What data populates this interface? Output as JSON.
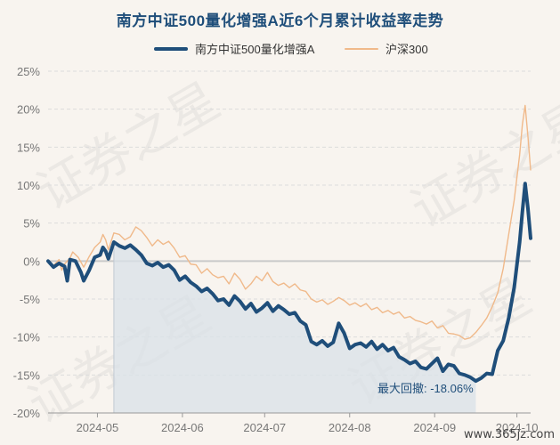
{
  "chart_data": {
    "type": "line",
    "title": "南方中证500量化增强A近6个月累计收益率走势",
    "y_ticks": [
      "25%",
      "20%",
      "15%",
      "10%",
      "5%",
      "0%",
      "-5%",
      "-10%",
      "-15%",
      "-20%"
    ],
    "ylim": [
      -20,
      25
    ],
    "x_ticks": [
      {
        "label": "2024-05",
        "x": 18
      },
      {
        "label": "2024-06",
        "x": 49
      },
      {
        "label": "2024-07",
        "x": 79
      },
      {
        "label": "2024-08",
        "x": 110
      },
      {
        "label": "2024-09",
        "x": 141
      },
      {
        "label": "2024-10",
        "x": 171
      }
    ],
    "xlim": [
      0,
      176
    ],
    "grid": true,
    "legend_position": "top",
    "series": [
      {
        "name": "南方中证500量化增强A",
        "color": "#1f4e7a",
        "points": [
          [
            0,
            0
          ],
          [
            2,
            -0.8
          ],
          [
            4,
            -0.3
          ],
          [
            6,
            -0.7
          ],
          [
            7,
            -2.6
          ],
          [
            8,
            0.2
          ],
          [
            10,
            0.0
          ],
          [
            12,
            -1.5
          ],
          [
            13,
            -2.6
          ],
          [
            15,
            -1.2
          ],
          [
            17,
            0.5
          ],
          [
            19,
            0.8
          ],
          [
            20,
            1.8
          ],
          [
            21,
            1.3
          ],
          [
            22,
            0.3
          ],
          [
            24,
            2.5
          ],
          [
            26,
            2.0
          ],
          [
            28,
            1.7
          ],
          [
            30,
            2.1
          ],
          [
            32,
            1.5
          ],
          [
            34,
            0.8
          ],
          [
            36,
            -0.3
          ],
          [
            38,
            -0.6
          ],
          [
            40,
            -0.2
          ],
          [
            42,
            -0.8
          ],
          [
            44,
            -0.5
          ],
          [
            46,
            -1.2
          ],
          [
            48,
            -2.5
          ],
          [
            50,
            -2.0
          ],
          [
            52,
            -2.8
          ],
          [
            54,
            -3.3
          ],
          [
            56,
            -4.0
          ],
          [
            58,
            -3.6
          ],
          [
            60,
            -4.3
          ],
          [
            62,
            -5.2
          ],
          [
            64,
            -5.0
          ],
          [
            66,
            -5.8
          ],
          [
            68,
            -4.6
          ],
          [
            70,
            -5.3
          ],
          [
            72,
            -6.3
          ],
          [
            74,
            -5.6
          ],
          [
            76,
            -6.7
          ],
          [
            78,
            -6.2
          ],
          [
            80,
            -5.5
          ],
          [
            82,
            -6.6
          ],
          [
            84,
            -5.9
          ],
          [
            86,
            -6.4
          ],
          [
            88,
            -7.0
          ],
          [
            90,
            -6.8
          ],
          [
            92,
            -7.9
          ],
          [
            94,
            -8.4
          ],
          [
            96,
            -10.6
          ],
          [
            98,
            -11.0
          ],
          [
            100,
            -10.5
          ],
          [
            102,
            -11.2
          ],
          [
            104,
            -10.7
          ],
          [
            106,
            -8.2
          ],
          [
            108,
            -9.5
          ],
          [
            110,
            -11.5
          ],
          [
            112,
            -11.0
          ],
          [
            114,
            -10.8
          ],
          [
            116,
            -11.3
          ],
          [
            118,
            -10.6
          ],
          [
            120,
            -11.6
          ],
          [
            122,
            -11.0
          ],
          [
            124,
            -11.8
          ],
          [
            126,
            -11.4
          ],
          [
            128,
            -12.6
          ],
          [
            130,
            -13.0
          ],
          [
            132,
            -13.5
          ],
          [
            134,
            -13.2
          ],
          [
            136,
            -14.0
          ],
          [
            138,
            -14.2
          ],
          [
            140,
            -13.5
          ],
          [
            142,
            -12.8
          ],
          [
            144,
            -14.5
          ],
          [
            146,
            -13.6
          ],
          [
            148,
            -13.8
          ],
          [
            150,
            -14.8
          ],
          [
            152,
            -15.0
          ],
          [
            154,
            -15.3
          ],
          [
            156,
            -15.8
          ],
          [
            158,
            -15.4
          ],
          [
            160,
            -14.8
          ],
          [
            162,
            -14.9
          ],
          [
            164,
            -11.8
          ],
          [
            166,
            -10.5
          ],
          [
            168,
            -7.5
          ],
          [
            170,
            -3.5
          ],
          [
            172,
            2.5
          ],
          [
            173,
            6.5
          ],
          [
            174,
            10.2
          ],
          [
            175,
            7.0
          ],
          [
            176,
            3.0
          ]
        ]
      },
      {
        "name": "沪深300",
        "color": "#f0b98a",
        "points": [
          [
            0,
            0
          ],
          [
            2,
            -0.6
          ],
          [
            4,
            0.2
          ],
          [
            5,
            -1.2
          ],
          [
            6,
            -0.4
          ],
          [
            8,
            0.4
          ],
          [
            9,
            1.2
          ],
          [
            11,
            0.5
          ],
          [
            13,
            -0.8
          ],
          [
            15,
            0.6
          ],
          [
            17,
            1.8
          ],
          [
            19,
            2.5
          ],
          [
            20,
            3.5
          ],
          [
            21,
            2.8
          ],
          [
            22,
            1.5
          ],
          [
            24,
            3.7
          ],
          [
            26,
            3.5
          ],
          [
            28,
            2.8
          ],
          [
            30,
            3.2
          ],
          [
            32,
            4.5
          ],
          [
            34,
            4.0
          ],
          [
            36,
            3.1
          ],
          [
            38,
            2.0
          ],
          [
            40,
            2.8
          ],
          [
            42,
            2.2
          ],
          [
            44,
            2.6
          ],
          [
            46,
            1.7
          ],
          [
            48,
            0.5
          ],
          [
            50,
            0.7
          ],
          [
            52,
            -0.4
          ],
          [
            54,
            -0.5
          ],
          [
            56,
            -1.6
          ],
          [
            58,
            -1.0
          ],
          [
            60,
            -1.8
          ],
          [
            62,
            -2.2
          ],
          [
            64,
            -2.0
          ],
          [
            66,
            -3.0
          ],
          [
            68,
            -1.6
          ],
          [
            70,
            -2.4
          ],
          [
            72,
            -3.7
          ],
          [
            74,
            -3.0
          ],
          [
            76,
            -2.0
          ],
          [
            78,
            -2.6
          ],
          [
            80,
            -1.5
          ],
          [
            82,
            -2.7
          ],
          [
            84,
            -3.2
          ],
          [
            86,
            -2.9
          ],
          [
            88,
            -3.5
          ],
          [
            90,
            -3.0
          ],
          [
            92,
            -3.8
          ],
          [
            94,
            -4.0
          ],
          [
            96,
            -5.0
          ],
          [
            98,
            -5.4
          ],
          [
            100,
            -5.1
          ],
          [
            102,
            -5.7
          ],
          [
            104,
            -5.3
          ],
          [
            106,
            -4.8
          ],
          [
            108,
            -5.2
          ],
          [
            110,
            -5.8
          ],
          [
            112,
            -5.5
          ],
          [
            114,
            -6.0
          ],
          [
            116,
            -5.6
          ],
          [
            118,
            -6.4
          ],
          [
            120,
            -6.1
          ],
          [
            122,
            -6.8
          ],
          [
            124,
            -6.5
          ],
          [
            126,
            -7.0
          ],
          [
            128,
            -6.7
          ],
          [
            130,
            -7.5
          ],
          [
            132,
            -7.3
          ],
          [
            134,
            -7.8
          ],
          [
            136,
            -8.0
          ],
          [
            138,
            -8.3
          ],
          [
            140,
            -7.9
          ],
          [
            142,
            -8.8
          ],
          [
            144,
            -8.5
          ],
          [
            146,
            -9.5
          ],
          [
            148,
            -9.6
          ],
          [
            150,
            -9.8
          ],
          [
            152,
            -10.3
          ],
          [
            154,
            -10.1
          ],
          [
            156,
            -9.4
          ],
          [
            158,
            -8.5
          ],
          [
            160,
            -7.5
          ],
          [
            162,
            -6.0
          ],
          [
            164,
            -4.2
          ],
          [
            166,
            -1.0
          ],
          [
            168,
            3.5
          ],
          [
            170,
            8.0
          ],
          [
            172,
            14.0
          ],
          [
            173,
            18.0
          ],
          [
            174,
            20.5
          ],
          [
            175,
            16.5
          ],
          [
            176,
            12.0
          ]
        ]
      }
    ],
    "drawdown_shade": {
      "x_start": 24,
      "x_end": 156,
      "color": "#d9e1e8"
    },
    "annotation": "最大回撤: -18.06%",
    "watermark": "证券之星",
    "site": "www.365jz.com"
  }
}
